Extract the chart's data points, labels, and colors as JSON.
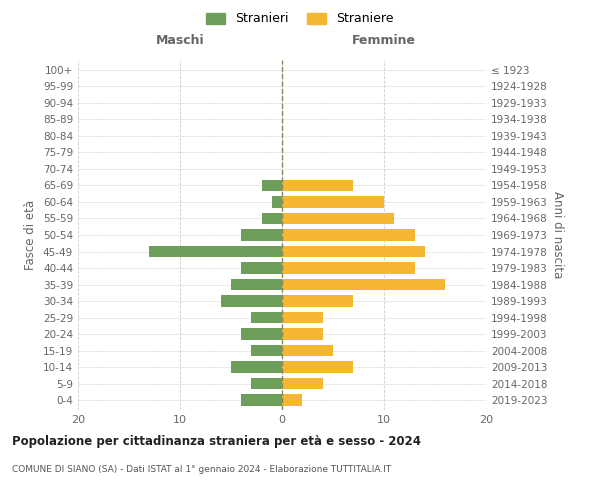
{
  "age_groups": [
    "0-4",
    "5-9",
    "10-14",
    "15-19",
    "20-24",
    "25-29",
    "30-34",
    "35-39",
    "40-44",
    "45-49",
    "50-54",
    "55-59",
    "60-64",
    "65-69",
    "70-74",
    "75-79",
    "80-84",
    "85-89",
    "90-94",
    "95-99",
    "100+"
  ],
  "birth_years": [
    "2019-2023",
    "2014-2018",
    "2009-2013",
    "2004-2008",
    "1999-2003",
    "1994-1998",
    "1989-1993",
    "1984-1988",
    "1979-1983",
    "1974-1978",
    "1969-1973",
    "1964-1968",
    "1959-1963",
    "1954-1958",
    "1949-1953",
    "1944-1948",
    "1939-1943",
    "1934-1938",
    "1929-1933",
    "1924-1928",
    "≤ 1923"
  ],
  "maschi": [
    4,
    3,
    5,
    3,
    4,
    3,
    6,
    5,
    4,
    13,
    4,
    2,
    1,
    2,
    0,
    0,
    0,
    0,
    0,
    0,
    0
  ],
  "femmine": [
    2,
    4,
    7,
    5,
    4,
    4,
    7,
    16,
    13,
    14,
    13,
    11,
    10,
    7,
    0,
    0,
    0,
    0,
    0,
    0,
    0
  ],
  "color_maschi": "#6d9e5a",
  "color_femmine": "#f5b731",
  "xlim": 20,
  "title": "Popolazione per cittadinanza straniera per età e sesso - 2024",
  "subtitle": "COMUNE DI SIANO (SA) - Dati ISTAT al 1° gennaio 2024 - Elaborazione TUTTITALIA.IT",
  "legend_maschi": "Stranieri",
  "legend_femmine": "Straniere",
  "xlabel_left": "Maschi",
  "xlabel_right": "Femmine",
  "ylabel_left": "Fasce di età",
  "ylabel_right": "Anni di nascita",
  "background_color": "#ffffff",
  "grid_color": "#cccccc",
  "tick_color": "#999999",
  "text_color": "#666666"
}
